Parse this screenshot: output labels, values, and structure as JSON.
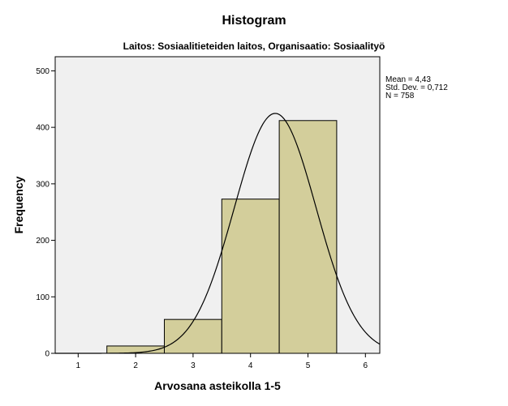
{
  "chart_data": {
    "type": "bar",
    "title": "Histogram",
    "subtitle": "Laitos: Sosiaalitieteiden laitos, Organisaatio: Sosiaalityö",
    "xlabel": "Arvosana asteikolla 1-5",
    "ylabel": "Frequency",
    "categories": [
      "1",
      "2",
      "3",
      "4",
      "5"
    ],
    "values": [
      0,
      13,
      60,
      273,
      412
    ],
    "bin_width": 1,
    "xlim": [
      0.6,
      6.25
    ],
    "ylim": [
      0,
      525
    ],
    "x_ticks": [
      "1",
      "2",
      "3",
      "4",
      "5",
      "6"
    ],
    "y_ticks": [
      "0",
      "100",
      "200",
      "300",
      "400",
      "500"
    ],
    "normal_curve": {
      "mean": 4.43,
      "std": 0.712,
      "n": 758
    },
    "stats": [
      "Mean = 4,43",
      "Std. Dev. = 0,712",
      "N = 758"
    ],
    "bar_color": "#d3ce9b",
    "plot_background": "#f0f0f0",
    "grid": false
  }
}
